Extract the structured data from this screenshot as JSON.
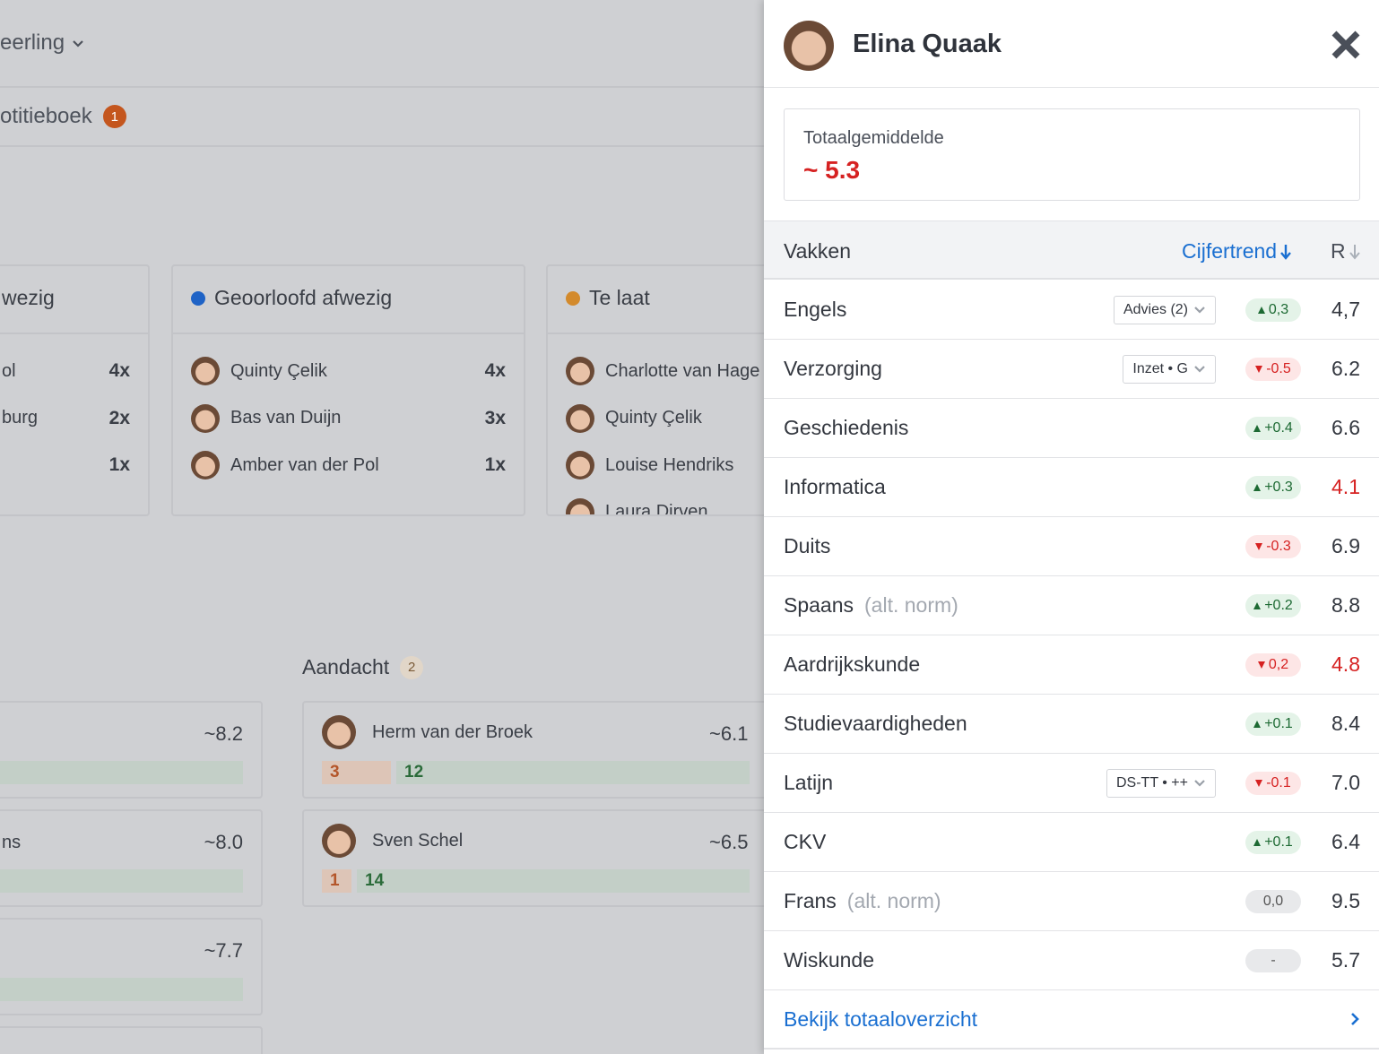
{
  "background": {
    "nav_dropdown": "eerling",
    "tab": {
      "label": "otitieboek",
      "badge": "1"
    },
    "attendance": [
      {
        "title": "wezig",
        "rows": [
          {
            "name": "ol",
            "count": "4x"
          },
          {
            "name": "burg",
            "count": "2x"
          },
          {
            "count": "1x"
          }
        ]
      },
      {
        "title": "Geoorloofd afwezig",
        "dot": "#1f63c6",
        "rows": [
          {
            "name": "Quinty Çelik",
            "count": "4x"
          },
          {
            "name": "Bas van Duijn",
            "count": "3x"
          },
          {
            "name": "Amber van der Pol",
            "count": "1x"
          }
        ]
      },
      {
        "title": "Te laat",
        "dot": "#d38a2c",
        "rows": [
          {
            "name": "Charlotte van Hage"
          },
          {
            "name": "Quinty Çelik"
          },
          {
            "name": "Louise Hendriks"
          },
          {
            "name": "Laura Dirven"
          }
        ]
      }
    ],
    "students_left": [
      {
        "average": "~8.2"
      },
      {
        "name": "ns",
        "average": "~8.0"
      },
      {
        "average": "~7.7"
      }
    ],
    "attention": {
      "title": "Aandacht",
      "badge": "2",
      "students": [
        {
          "name": "Herm van der Broek",
          "average": "~6.1",
          "bars": [
            3,
            12
          ]
        },
        {
          "name": "Sven Schel",
          "average": "~6.5",
          "bars": [
            1,
            14
          ]
        }
      ]
    }
  },
  "panel": {
    "student": "Elina Quaak",
    "summary": {
      "label": "Totaalgemiddelde",
      "value": "~ 5.3"
    },
    "headers": [
      "Vakken",
      "Cijfertrend",
      "R"
    ],
    "rows": [
      {
        "subject": "Engels",
        "tag": "Advies (2)",
        "trend": "0,3",
        "direction": "up",
        "grade": "4,7"
      },
      {
        "subject": "Verzorging",
        "tag": "Inzet • G",
        "trend": "-0.5",
        "direction": "down",
        "grade": "6.2"
      },
      {
        "subject": "Geschiedenis",
        "trend": "+0.4",
        "direction": "up",
        "grade": "6.6"
      },
      {
        "subject": "Informatica",
        "trend": "+0.3",
        "direction": "up",
        "grade": "4.1",
        "alert": true
      },
      {
        "subject": "Duits",
        "trend": "-0.3",
        "direction": "down",
        "grade": "6.9"
      },
      {
        "subject": "Spaans",
        "note": "(alt. norm)",
        "trend": "+0.2",
        "direction": "up",
        "grade": "8.8"
      },
      {
        "subject": "Aardrijkskunde",
        "trend": "0,2",
        "direction": "down",
        "grade": "4.8",
        "alert": true
      },
      {
        "subject": "Studievaardigheden",
        "trend": "+0.1",
        "direction": "up",
        "grade": "8.4"
      },
      {
        "subject": "Latijn",
        "tag": "DS-TT • ++",
        "trend": "-0.1",
        "direction": "down",
        "grade": "7.0"
      },
      {
        "subject": "CKV",
        "trend": "+0.1",
        "direction": "up",
        "grade": "6.4"
      },
      {
        "subject": "Frans",
        "note": "(alt. norm)",
        "trend": "0,0",
        "direction": "neutral",
        "grade": "9.5"
      },
      {
        "subject": "Wiskunde",
        "trend": "-",
        "direction": "neutral",
        "grade": "5.7"
      }
    ],
    "footer_link": "Bekijk totaaloverzicht"
  }
}
